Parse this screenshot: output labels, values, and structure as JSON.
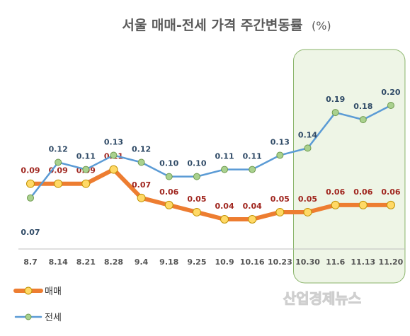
{
  "chart_data": {
    "type": "line",
    "title": "서울 매매-전세 가격 주간변동률",
    "title_unit": "(%)",
    "categories": [
      "8.7",
      "8.14",
      "8.21",
      "8.28",
      "9.4",
      "9.18",
      "9.25",
      "10.9",
      "10.16",
      "10.23",
      "10.30",
      "11.6",
      "11.13",
      "11.20"
    ],
    "series": [
      {
        "name": "매매",
        "values": [
          0.09,
          0.09,
          0.09,
          0.11,
          0.07,
          0.06,
          0.05,
          0.04,
          0.04,
          0.05,
          0.05,
          0.06,
          0.06,
          0.06
        ],
        "labels": [
          "0.09",
          "0.09",
          "0.09",
          "0.11",
          "0.07",
          "0.06",
          "0.05",
          "0.04",
          "0.04",
          "0.05",
          "0.05",
          "0.06",
          "0.06",
          "0.06"
        ],
        "line_color": "#ed7d31",
        "marker_color": "#ffd966",
        "label_color": "#a0261f"
      },
      {
        "name": "전세",
        "values": [
          0.07,
          0.12,
          0.11,
          0.13,
          0.12,
          0.1,
          0.1,
          0.11,
          0.11,
          0.13,
          0.14,
          0.19,
          0.18,
          0.2
        ],
        "labels": [
          "0.07",
          "0.12",
          "0.11",
          "0.13",
          "0.12",
          "0.10",
          "0.10",
          "0.11",
          "0.11",
          "0.13",
          "0.14",
          "0.19",
          "0.18",
          "0.20"
        ],
        "line_color": "#5b9bd5",
        "marker_color": "#a9d18e",
        "label_color": "#2f4a66"
      }
    ],
    "highlight": {
      "from": "10.30",
      "to": "11.20",
      "fill": "#eef5e6",
      "stroke": "#8ab46a"
    },
    "legend_position": "bottom-left",
    "grid": false
  },
  "watermark": "산업경제뉴스"
}
